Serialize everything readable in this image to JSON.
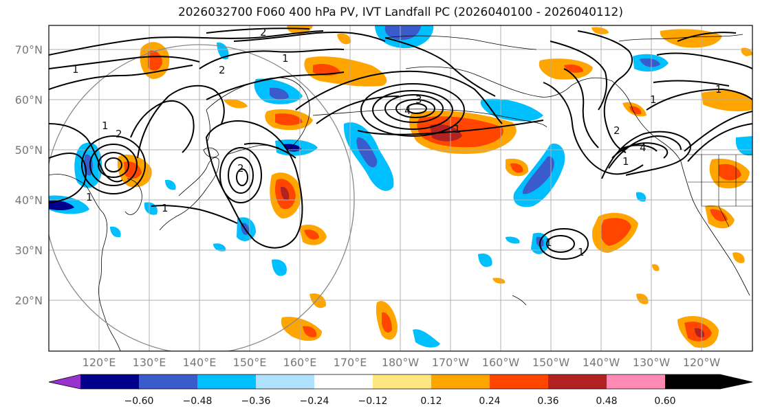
{
  "title": "2026032700 F060 400 hPa PV, IVT Landfall PC (2026040100 - 2026040112)",
  "lat_labels": [
    "70°N",
    "60°N",
    "50°N",
    "40°N",
    "30°N",
    "20°N"
  ],
  "lon_labels": [
    "120°E",
    "130°E",
    "140°E",
    "150°E",
    "160°E",
    "170°E",
    "180°W",
    "170°W",
    "160°W",
    "150°W",
    "140°W",
    "130°W",
    "120°W"
  ],
  "contour_labels": [
    "1",
    "2",
    "1",
    "2",
    "1",
    "2",
    "3",
    "4",
    "1",
    "2",
    "1",
    "1",
    "2",
    "1",
    "4",
    "1",
    "1",
    "1",
    "1"
  ],
  "colorbar": {
    "ticks": [
      "−0.60",
      "−0.48",
      "−0.36",
      "−0.24",
      "−0.12",
      "0.12",
      "0.24",
      "0.36",
      "0.48",
      "0.60"
    ],
    "colors": [
      "#9932cc",
      "#00008b",
      "#3a5bcb",
      "#00bfff",
      "#b0e2ff",
      "#ffffff",
      "#ffe680",
      "#ffa500",
      "#ff4500",
      "#b22222",
      "#ff8ab4"
    ]
  },
  "colors": {
    "neg_strong": "#3a5bcb",
    "neg_dark": "#00008b",
    "neg": "#00bfff",
    "pos": "#ffa500",
    "pos_strong": "#ff4500",
    "pos_dark": "#b22222",
    "grid": "#b0b0b0",
    "contour": "#000000",
    "coast": "#000000",
    "circle": "#888888"
  }
}
